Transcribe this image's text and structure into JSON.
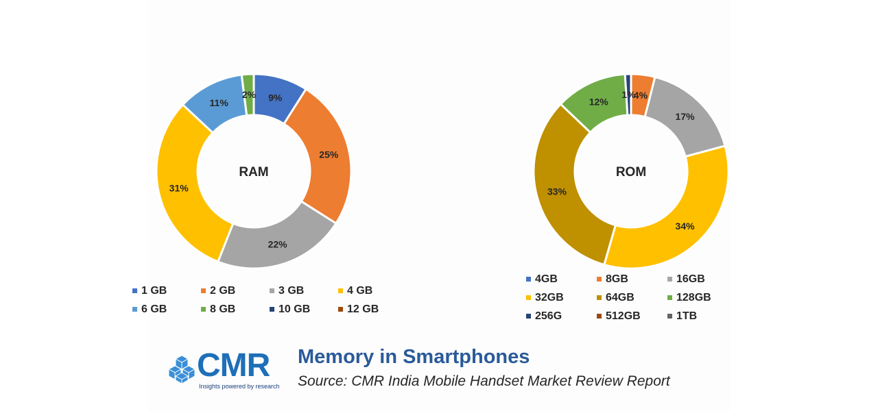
{
  "chart_data": [
    {
      "type": "donut",
      "title": "RAM",
      "categories": [
        "1 GB",
        "2 GB",
        "3 GB",
        "4 GB",
        "6 GB",
        "8 GB",
        "10 GB",
        "12 GB"
      ],
      "values": [
        9,
        25,
        22,
        31,
        11,
        2,
        0,
        0
      ],
      "labels": [
        "9%",
        "25%",
        "22%",
        "31%",
        "11%",
        "2%",
        "",
        ""
      ],
      "colors": [
        "#4472C4",
        "#ED7D31",
        "#A5A5A5",
        "#FFC000",
        "#5B9BD5",
        "#70AD47",
        "#264478",
        "#9E480E"
      ],
      "legend_position": "bottom"
    },
    {
      "type": "donut",
      "title": "ROM",
      "categories": [
        "4GB",
        "8GB",
        "16GB",
        "32GB",
        "64GB",
        "128GB",
        "256G",
        "512GB",
        "1TB"
      ],
      "values": [
        0,
        4,
        17,
        34,
        33,
        12,
        1,
        0,
        0
      ],
      "labels": [
        "",
        "4%",
        "17%",
        "34%",
        "33%",
        "12%",
        "1%",
        "",
        ""
      ],
      "colors": [
        "#4472C4",
        "#ED7D31",
        "#A5A5A5",
        "#FFC000",
        "#BF9000",
        "#70AD47",
        "#264478",
        "#9E480E",
        "#636363"
      ],
      "legend_position": "bottom"
    }
  ],
  "footer": {
    "logo_text": "CMR",
    "logo_tagline": "Insights powered by research",
    "title": "Memory in Smartphones",
    "source": "Source:  CMR India Mobile Handset Market Review Report"
  }
}
